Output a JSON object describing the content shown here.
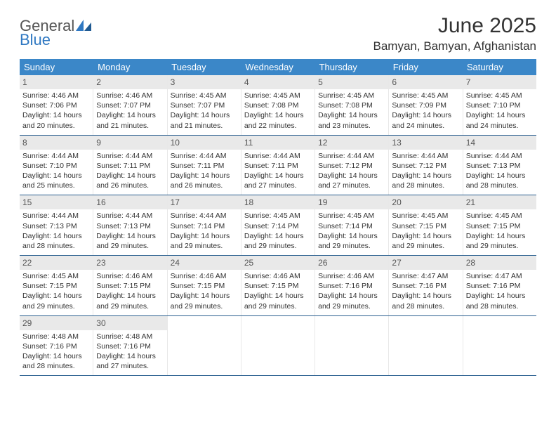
{
  "logo": {
    "general": "General",
    "blue": "Blue"
  },
  "title": "June 2025",
  "location": "Bamyan, Bamyan, Afghanistan",
  "colors": {
    "header_bg": "#3b87c8",
    "header_text": "#ffffff",
    "border": "#2a5f8f",
    "daynum_bg": "#e9e9e9",
    "text": "#333333",
    "logo_gray": "#555555",
    "logo_blue": "#2f78c2"
  },
  "day_names": [
    "Sunday",
    "Monday",
    "Tuesday",
    "Wednesday",
    "Thursday",
    "Friday",
    "Saturday"
  ],
  "weeks": [
    [
      {
        "n": "1",
        "sr": "Sunrise: 4:46 AM",
        "ss": "Sunset: 7:06 PM",
        "dl": "Daylight: 14 hours and 20 minutes."
      },
      {
        "n": "2",
        "sr": "Sunrise: 4:46 AM",
        "ss": "Sunset: 7:07 PM",
        "dl": "Daylight: 14 hours and 21 minutes."
      },
      {
        "n": "3",
        "sr": "Sunrise: 4:45 AM",
        "ss": "Sunset: 7:07 PM",
        "dl": "Daylight: 14 hours and 21 minutes."
      },
      {
        "n": "4",
        "sr": "Sunrise: 4:45 AM",
        "ss": "Sunset: 7:08 PM",
        "dl": "Daylight: 14 hours and 22 minutes."
      },
      {
        "n": "5",
        "sr": "Sunrise: 4:45 AM",
        "ss": "Sunset: 7:08 PM",
        "dl": "Daylight: 14 hours and 23 minutes."
      },
      {
        "n": "6",
        "sr": "Sunrise: 4:45 AM",
        "ss": "Sunset: 7:09 PM",
        "dl": "Daylight: 14 hours and 24 minutes."
      },
      {
        "n": "7",
        "sr": "Sunrise: 4:45 AM",
        "ss": "Sunset: 7:10 PM",
        "dl": "Daylight: 14 hours and 24 minutes."
      }
    ],
    [
      {
        "n": "8",
        "sr": "Sunrise: 4:44 AM",
        "ss": "Sunset: 7:10 PM",
        "dl": "Daylight: 14 hours and 25 minutes."
      },
      {
        "n": "9",
        "sr": "Sunrise: 4:44 AM",
        "ss": "Sunset: 7:11 PM",
        "dl": "Daylight: 14 hours and 26 minutes."
      },
      {
        "n": "10",
        "sr": "Sunrise: 4:44 AM",
        "ss": "Sunset: 7:11 PM",
        "dl": "Daylight: 14 hours and 26 minutes."
      },
      {
        "n": "11",
        "sr": "Sunrise: 4:44 AM",
        "ss": "Sunset: 7:11 PM",
        "dl": "Daylight: 14 hours and 27 minutes."
      },
      {
        "n": "12",
        "sr": "Sunrise: 4:44 AM",
        "ss": "Sunset: 7:12 PM",
        "dl": "Daylight: 14 hours and 27 minutes."
      },
      {
        "n": "13",
        "sr": "Sunrise: 4:44 AM",
        "ss": "Sunset: 7:12 PM",
        "dl": "Daylight: 14 hours and 28 minutes."
      },
      {
        "n": "14",
        "sr": "Sunrise: 4:44 AM",
        "ss": "Sunset: 7:13 PM",
        "dl": "Daylight: 14 hours and 28 minutes."
      }
    ],
    [
      {
        "n": "15",
        "sr": "Sunrise: 4:44 AM",
        "ss": "Sunset: 7:13 PM",
        "dl": "Daylight: 14 hours and 28 minutes."
      },
      {
        "n": "16",
        "sr": "Sunrise: 4:44 AM",
        "ss": "Sunset: 7:13 PM",
        "dl": "Daylight: 14 hours and 29 minutes."
      },
      {
        "n": "17",
        "sr": "Sunrise: 4:44 AM",
        "ss": "Sunset: 7:14 PM",
        "dl": "Daylight: 14 hours and 29 minutes."
      },
      {
        "n": "18",
        "sr": "Sunrise: 4:45 AM",
        "ss": "Sunset: 7:14 PM",
        "dl": "Daylight: 14 hours and 29 minutes."
      },
      {
        "n": "19",
        "sr": "Sunrise: 4:45 AM",
        "ss": "Sunset: 7:14 PM",
        "dl": "Daylight: 14 hours and 29 minutes."
      },
      {
        "n": "20",
        "sr": "Sunrise: 4:45 AM",
        "ss": "Sunset: 7:15 PM",
        "dl": "Daylight: 14 hours and 29 minutes."
      },
      {
        "n": "21",
        "sr": "Sunrise: 4:45 AM",
        "ss": "Sunset: 7:15 PM",
        "dl": "Daylight: 14 hours and 29 minutes."
      }
    ],
    [
      {
        "n": "22",
        "sr": "Sunrise: 4:45 AM",
        "ss": "Sunset: 7:15 PM",
        "dl": "Daylight: 14 hours and 29 minutes."
      },
      {
        "n": "23",
        "sr": "Sunrise: 4:46 AM",
        "ss": "Sunset: 7:15 PM",
        "dl": "Daylight: 14 hours and 29 minutes."
      },
      {
        "n": "24",
        "sr": "Sunrise: 4:46 AM",
        "ss": "Sunset: 7:15 PM",
        "dl": "Daylight: 14 hours and 29 minutes."
      },
      {
        "n": "25",
        "sr": "Sunrise: 4:46 AM",
        "ss": "Sunset: 7:15 PM",
        "dl": "Daylight: 14 hours and 29 minutes."
      },
      {
        "n": "26",
        "sr": "Sunrise: 4:46 AM",
        "ss": "Sunset: 7:16 PM",
        "dl": "Daylight: 14 hours and 29 minutes."
      },
      {
        "n": "27",
        "sr": "Sunrise: 4:47 AM",
        "ss": "Sunset: 7:16 PM",
        "dl": "Daylight: 14 hours and 28 minutes."
      },
      {
        "n": "28",
        "sr": "Sunrise: 4:47 AM",
        "ss": "Sunset: 7:16 PM",
        "dl": "Daylight: 14 hours and 28 minutes."
      }
    ],
    [
      {
        "n": "29",
        "sr": "Sunrise: 4:48 AM",
        "ss": "Sunset: 7:16 PM",
        "dl": "Daylight: 14 hours and 28 minutes."
      },
      {
        "n": "30",
        "sr": "Sunrise: 4:48 AM",
        "ss": "Sunset: 7:16 PM",
        "dl": "Daylight: 14 hours and 27 minutes."
      },
      null,
      null,
      null,
      null,
      null
    ]
  ]
}
